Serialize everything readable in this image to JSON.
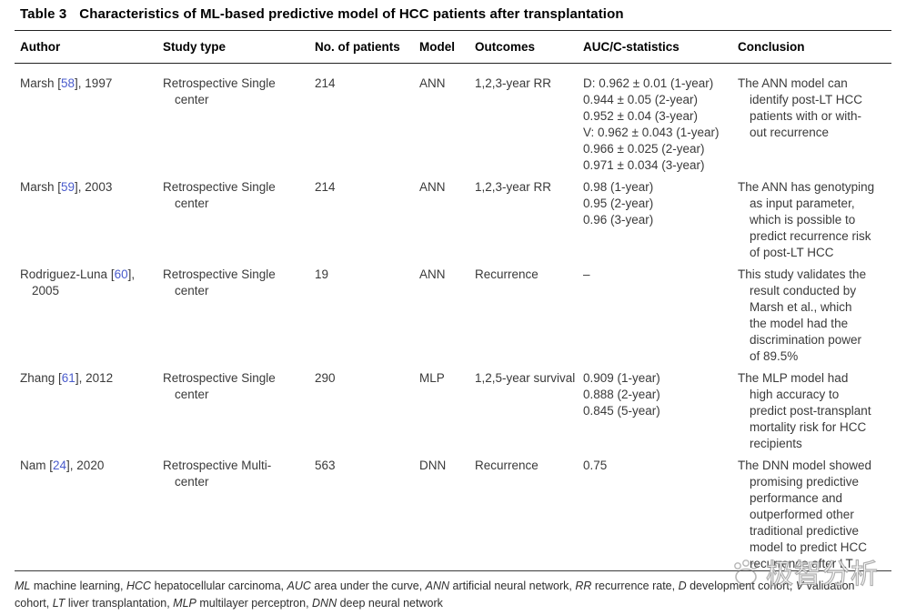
{
  "colors": {
    "link": "#4a5ccc",
    "text": "#3a3a3a",
    "rule": "#222222",
    "background": "#ffffff"
  },
  "title": {
    "label": "Table 3",
    "text": "Characteristics of ML-based predictive model of HCC patients after transplantation"
  },
  "table": {
    "columns": [
      "Author",
      "Study type",
      "No. of patients",
      "Model",
      "Outcomes",
      "AUC/C-statistics",
      "Conclusion"
    ],
    "rows": [
      {
        "author": {
          "pre": "Marsh [",
          "ref": "58",
          "post": "], 1997",
          "line2": ""
        },
        "study_type": [
          "Retrospective Single",
          "center"
        ],
        "patients": "214",
        "model": "ANN",
        "outcomes": "1,2,3-year RR",
        "auc": [
          "D: 0.962 ± 0.01 (1-year)",
          "0.944 ± 0.05 (2-year)",
          "0.952 ± 0.04 (3-year)",
          "V: 0.962 ± 0.043 (1-year)",
          "0.966 ± 0.025 (2-year)",
          "0.971 ± 0.034 (3-year)"
        ],
        "conclusion": [
          "The ANN model can",
          "identify post-LT HCC",
          "patients with or with-",
          "out recurrence"
        ]
      },
      {
        "author": {
          "pre": "Marsh [",
          "ref": "59",
          "post": "], 2003",
          "line2": ""
        },
        "study_type": [
          "Retrospective Single",
          "center"
        ],
        "patients": "214",
        "model": "ANN",
        "outcomes": "1,2,3-year RR",
        "auc": [
          "0.98 (1-year)",
          "0.95 (2-year)",
          "0.96 (3-year)"
        ],
        "conclusion": [
          "The ANN has genotyping",
          "as input parameter,",
          "which is possible to",
          "predict recurrence risk",
          "of post-LT HCC"
        ]
      },
      {
        "author": {
          "pre": "Rodriguez-Luna [",
          "ref": "60",
          "post": "],",
          "line2": "2005"
        },
        "study_type": [
          "Retrospective Single",
          "center"
        ],
        "patients": "19",
        "model": "ANN",
        "outcomes": "Recurrence",
        "auc": [
          "–"
        ],
        "conclusion": [
          "This study validates the",
          "result conducted by",
          "Marsh et al., which",
          "the model had the",
          "discrimination power",
          "of 89.5%"
        ]
      },
      {
        "author": {
          "pre": "Zhang [",
          "ref": "61",
          "post": "], 2012",
          "line2": ""
        },
        "study_type": [
          "Retrospective Single",
          "center"
        ],
        "patients": "290",
        "model": "MLP",
        "outcomes": "1,2,5-year survival",
        "auc": [
          "0.909 (1-year)",
          "0.888 (2-year)",
          "0.845 (5-year)"
        ],
        "conclusion": [
          "The MLP model had",
          "high accuracy to",
          "predict post-transplant",
          "mortality risk for HCC",
          "recipients"
        ]
      },
      {
        "author": {
          "pre": "Nam [",
          "ref": "24",
          "post": "], 2020",
          "line2": ""
        },
        "study_type": [
          "Retrospective Multi-",
          "center"
        ],
        "patients": "563",
        "model": "DNN",
        "outcomes": "Recurrence",
        "auc": [
          "0.75"
        ],
        "conclusion": [
          "The DNN model showed",
          "promising predictive",
          "performance and",
          "outperformed other",
          "traditional predictive",
          "model to predict HCC",
          "recurrence after LT"
        ]
      }
    ]
  },
  "footnote": {
    "segments": [
      {
        "t": "ML",
        "i": true
      },
      {
        "t": " machine learning, "
      },
      {
        "t": "HCC",
        "i": true
      },
      {
        "t": " hepatocellular carcinoma, "
      },
      {
        "t": "AUC",
        "i": true
      },
      {
        "t": " area under the curve, "
      },
      {
        "t": "ANN",
        "i": true
      },
      {
        "t": " artificial neural network, "
      },
      {
        "t": "RR",
        "i": true
      },
      {
        "t": " recurrence rate, "
      },
      {
        "t": "D",
        "i": true
      },
      {
        "t": " development cohort, "
      },
      {
        "t": "V",
        "i": true
      },
      {
        "t": " validation cohort, "
      },
      {
        "t": "LT",
        "i": true
      },
      {
        "t": " liver transplantation, "
      },
      {
        "t": "MLP",
        "i": true
      },
      {
        "t": " multilayer perceptron, "
      },
      {
        "t": "DNN",
        "i": true
      },
      {
        "t": " deep neural network"
      }
    ]
  },
  "watermark": {
    "text": "极智分析",
    "logo": "paw-logo"
  }
}
